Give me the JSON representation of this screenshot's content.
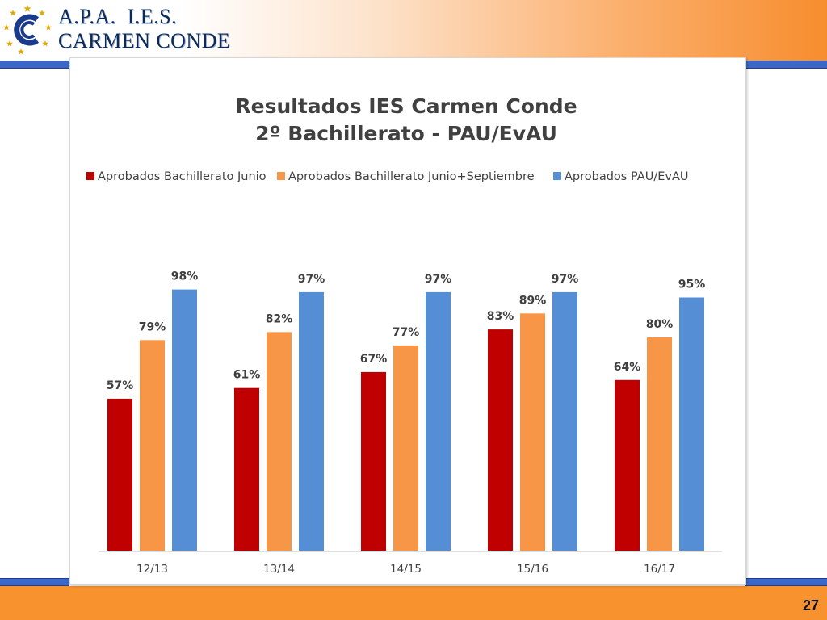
{
  "header": {
    "logo_line_1": "A.P.A.  I.E.S.",
    "logo_line_2": "CARMEN CONDE"
  },
  "footer": {
    "page_number": "27"
  },
  "colors": {
    "header_orange": "#f78d2e",
    "stripe_blue": "#3a67c8",
    "series_red": "#c00000",
    "series_orange": "#f79646",
    "series_blue": "#558ed5"
  },
  "chart_data": {
    "type": "bar",
    "title": [
      "Resultados IES Carmen Conde",
      "2º Bachillerato - PAU/EvAU"
    ],
    "categories": [
      "12/13",
      "13/14",
      "14/15",
      "15/16",
      "16/17"
    ],
    "series": [
      {
        "name": "Aprobados Bachillerato Junio",
        "color": "#c00000",
        "values": [
          57,
          61,
          67,
          83,
          64
        ],
        "labels": [
          "57%",
          "61%",
          "67%",
          "83%",
          "64%"
        ]
      },
      {
        "name": "Aprobados Bachillerato Junio+Septiembre",
        "color": "#f79646",
        "values": [
          79,
          82,
          77,
          89,
          80
        ],
        "labels": [
          "79%",
          "82%",
          "77%",
          "89%",
          "80%"
        ]
      },
      {
        "name": "Aprobados PAU/EvAU",
        "color": "#558ed5",
        "values": [
          98,
          97,
          97,
          97,
          95
        ],
        "labels": [
          "98%",
          "97%",
          "97%",
          "97%",
          "95%"
        ]
      }
    ],
    "ylim": [
      0,
      100
    ],
    "grid": false,
    "legend_position": "top"
  }
}
